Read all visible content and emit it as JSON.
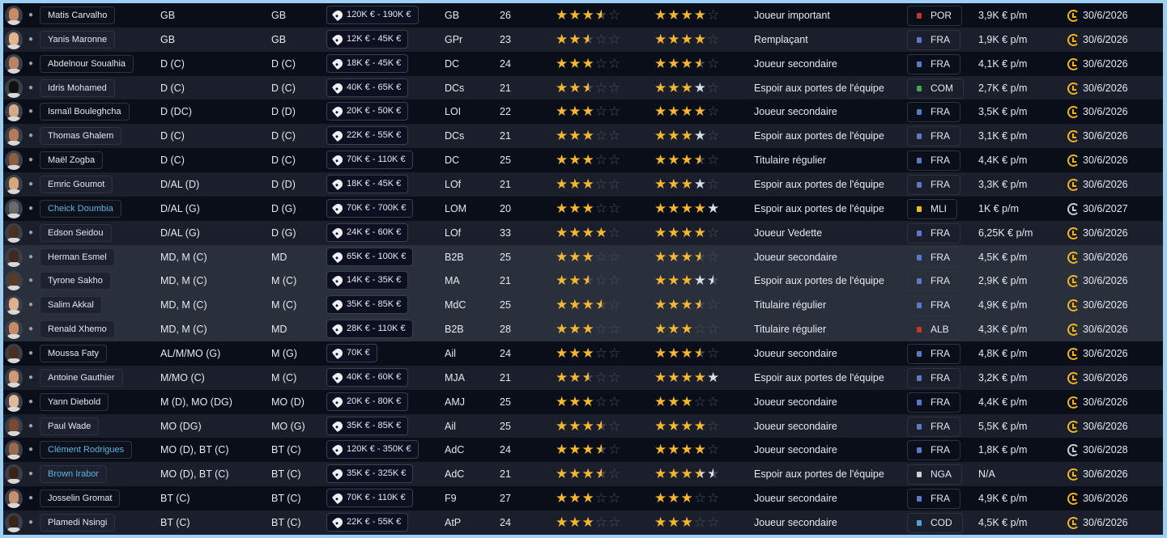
{
  "colors": {
    "star_gold": "#f7b731",
    "star_potential": "#d9dbe6",
    "star_empty": "#4a4f5e",
    "link_name": "#5fb4de",
    "clock_gold": "#f2b41c",
    "clock_grey": "#c8ccd4"
  },
  "players": [
    {
      "name": "Matis Carvalho",
      "link": false,
      "positions": "GB",
      "best_pos": "GB",
      "value": "120K € - 190K €",
      "role": "GB",
      "age": "26",
      "ability": 3.5,
      "potential_min": 4,
      "potential_max": 4,
      "status": "Joueur important",
      "nation": "POR",
      "flag": "#c0392b",
      "wage": "3,9K € p/m",
      "expires": "30/6/2026",
      "clock": "gold",
      "skin": "#c98b62"
    },
    {
      "name": "Yanis Maronne",
      "link": false,
      "positions": "GB",
      "best_pos": "GB",
      "value": "12K € - 45K €",
      "role": "GPr",
      "age": "23",
      "ability": 2.5,
      "potential_min": 4,
      "potential_max": 4,
      "status": "Remplaçant",
      "nation": "FRA",
      "flag": "#5b79c9",
      "wage": "1,9K € p/m",
      "expires": "30/6/2026",
      "clock": "gold",
      "skin": "#e2b48c"
    },
    {
      "name": "Abdelnour Soualhia",
      "link": false,
      "positions": "D (C)",
      "best_pos": "D (C)",
      "value": "18K € - 45K €",
      "role": "DC",
      "age": "24",
      "ability": 3,
      "potential_min": 3.5,
      "potential_max": 3.5,
      "status": "Joueur secondaire",
      "nation": "FRA",
      "flag": "#5b79c9",
      "wage": "4,1K € p/m",
      "expires": "30/6/2026",
      "clock": "gold",
      "skin": "#b98462"
    },
    {
      "name": "Idris Mohamed",
      "link": false,
      "positions": "D (C)",
      "best_pos": "D (C)",
      "value": "40K € - 65K €",
      "role": "DCs",
      "age": "21",
      "ability": 2.5,
      "potential_min": 3,
      "potential_max": 4,
      "status": "Espoir aux portes de l'équipe",
      "nation": "COM",
      "flag": "#3fa65a",
      "wage": "2,7K € p/m",
      "expires": "30/6/2026",
      "clock": "gold",
      "skin": "#111111"
    },
    {
      "name": "Ismaïl Bouleghcha",
      "link": false,
      "positions": "D (DC)",
      "best_pos": "D (D)",
      "value": "20K € - 50K €",
      "role": "LOI",
      "age": "22",
      "ability": 3,
      "potential_min": 4,
      "potential_max": 4,
      "status": "Joueur secondaire",
      "nation": "FRA",
      "flag": "#5b79c9",
      "wage": "3,5K € p/m",
      "expires": "30/6/2026",
      "clock": "gold",
      "skin": "#d6a98a"
    },
    {
      "name": "Thomas Ghalem",
      "link": false,
      "positions": "D (C)",
      "best_pos": "D (C)",
      "value": "22K € - 55K €",
      "role": "DCs",
      "age": "21",
      "ability": 3,
      "potential_min": 3,
      "potential_max": 4,
      "status": "Espoir aux portes de l'équipe",
      "nation": "FRA",
      "flag": "#5b79c9",
      "wage": "3,1K € p/m",
      "expires": "30/6/2026",
      "clock": "gold",
      "skin": "#b57a5a"
    },
    {
      "name": "Maël Zogba",
      "link": false,
      "positions": "D (C)",
      "best_pos": "D (C)",
      "value": "70K € - 110K €",
      "role": "DC",
      "age": "25",
      "ability": 3,
      "potential_min": 3.5,
      "potential_max": 3.5,
      "status": "Titulaire régulier",
      "nation": "FRA",
      "flag": "#5b79c9",
      "wage": "4,4K € p/m",
      "expires": "30/6/2026",
      "clock": "gold",
      "skin": "#8d5e40"
    },
    {
      "name": "Emric Goumot",
      "link": false,
      "positions": "D/AL (D)",
      "best_pos": "D (D)",
      "value": "18K € - 45K €",
      "role": "LOf",
      "age": "21",
      "ability": 3,
      "potential_min": 3,
      "potential_max": 4,
      "status": "Espoir aux portes de l'équipe",
      "nation": "FRA",
      "flag": "#5b79c9",
      "wage": "3,3K € p/m",
      "expires": "30/6/2026",
      "clock": "gold",
      "skin": "#d9a77c"
    },
    {
      "name": "Cheick Doumbia",
      "link": true,
      "positions": "D/AL (G)",
      "best_pos": "D (G)",
      "value": "70K € - 700K €",
      "role": "LOM",
      "age": "20",
      "ability": 3,
      "potential_min": 4,
      "potential_max": 5,
      "status": "Espoir aux portes de l'équipe",
      "nation": "MLI",
      "flag": "#e8c021",
      "wage": "1K € p/m",
      "expires": "30/6/2027",
      "clock": "grey",
      "skin": "#6a6a6a"
    },
    {
      "name": "Edson Seidou",
      "link": false,
      "positions": "D/AL (G)",
      "best_pos": "D (G)",
      "value": "24K € - 60K €",
      "role": "LOf",
      "age": "33",
      "ability": 4,
      "potential_min": 4,
      "potential_max": 4,
      "status": "Joueur Vedette",
      "nation": "FRA",
      "flag": "#5b79c9",
      "wage": "6,25K € p/m",
      "expires": "30/6/2026",
      "clock": "gold",
      "skin": "#4a3022"
    },
    {
      "name": "Herman Esmel",
      "link": false,
      "positions": "MD, M (C)",
      "best_pos": "MD",
      "value": "65K € - 100K €",
      "role": "B2B",
      "age": "25",
      "ability": 3,
      "potential_min": 3.5,
      "potential_max": 3.5,
      "status": "Joueur secondaire",
      "nation": "FRA",
      "flag": "#5b79c9",
      "wage": "4,5K € p/m",
      "expires": "30/6/2026",
      "clock": "gold",
      "skin": "#3e2a1e"
    },
    {
      "name": "Tyrone Sakho",
      "link": false,
      "positions": "MD, M (C)",
      "best_pos": "M (C)",
      "value": "14K € - 35K €",
      "role": "MA",
      "age": "21",
      "ability": 2.5,
      "potential_min": 3,
      "potential_max": 4.5,
      "status": "Espoir aux portes de l'équipe",
      "nation": "FRA",
      "flag": "#5b79c9",
      "wage": "2,9K € p/m",
      "expires": "30/6/2026",
      "clock": "gold",
      "skin": "#5a3a26"
    },
    {
      "name": "Salim Akkal",
      "link": false,
      "positions": "MD, M (C)",
      "best_pos": "M (C)",
      "value": "35K € - 85K €",
      "role": "MdC",
      "age": "25",
      "ability": 3.5,
      "potential_min": 3.5,
      "potential_max": 3.5,
      "status": "Titulaire régulier",
      "nation": "FRA",
      "flag": "#5b79c9",
      "wage": "4,9K € p/m",
      "expires": "30/6/2026",
      "clock": "gold",
      "skin": "#e0b090"
    },
    {
      "name": "Renald Xhemo",
      "link": false,
      "positions": "MD, M (C)",
      "best_pos": "MD",
      "value": "28K € - 110K €",
      "role": "B2B",
      "age": "28",
      "ability": 3,
      "potential_min": 3,
      "potential_max": 3,
      "status": "Titulaire régulier",
      "nation": "ALB",
      "flag": "#c0392b",
      "wage": "4,3K € p/m",
      "expires": "30/6/2026",
      "clock": "gold",
      "skin": "#c88a64"
    },
    {
      "name": "Moussa Faty",
      "link": false,
      "positions": "AL/M/MO (G)",
      "best_pos": "M (G)",
      "value": "70K €",
      "role": "Ail",
      "age": "24",
      "ability": 3,
      "potential_min": 3.5,
      "potential_max": 3.5,
      "status": "Joueur secondaire",
      "nation": "FRA",
      "flag": "#5b79c9",
      "wage": "4,8K € p/m",
      "expires": "30/6/2026",
      "clock": "gold",
      "skin": "#4a3022"
    },
    {
      "name": "Antoine Gauthier",
      "link": false,
      "positions": "M/MO (C)",
      "best_pos": "M (C)",
      "value": "40K € - 60K €",
      "role": "MJA",
      "age": "21",
      "ability": 2.5,
      "potential_min": 4,
      "potential_max": 5,
      "status": "Espoir aux portes de l'équipe",
      "nation": "FRA",
      "flag": "#5b79c9",
      "wage": "3,2K € p/m",
      "expires": "30/6/2026",
      "clock": "gold",
      "skin": "#d09a74"
    },
    {
      "name": "Yann Diebold",
      "link": false,
      "positions": "M (D), MO (DG)",
      "best_pos": "MO (D)",
      "value": "20K € - 80K €",
      "role": "AMJ",
      "age": "25",
      "ability": 3,
      "potential_min": 3,
      "potential_max": 3,
      "status": "Joueur secondaire",
      "nation": "FRA",
      "flag": "#5b79c9",
      "wage": "4,4K € p/m",
      "expires": "30/6/2026",
      "clock": "gold",
      "skin": "#e2b896"
    },
    {
      "name": "Paul Wade",
      "link": false,
      "positions": "MO (DG)",
      "best_pos": "MO (G)",
      "value": "35K € - 85K €",
      "role": "Ail",
      "age": "25",
      "ability": 3.5,
      "potential_min": 4,
      "potential_max": 4,
      "status": "Joueur secondaire",
      "nation": "FRA",
      "flag": "#5b79c9",
      "wage": "5,5K € p/m",
      "expires": "30/6/2026",
      "clock": "gold",
      "skin": "#7a4a30"
    },
    {
      "name": "Clément Rodrigues",
      "link": true,
      "positions": "MO (D), BT (C)",
      "best_pos": "BT (C)",
      "value": "120K € - 350K €",
      "role": "AdC",
      "age": "24",
      "ability": 3.5,
      "potential_min": 4,
      "potential_max": 4,
      "status": "Joueur secondaire",
      "nation": "FRA",
      "flag": "#5b79c9",
      "wage": "1,8K € p/m",
      "expires": "30/6/2028",
      "clock": "grey",
      "skin": "#9a6a4a"
    },
    {
      "name": "Brown Irabor",
      "link": true,
      "positions": "MO (D), BT (C)",
      "best_pos": "BT (C)",
      "value": "35K € - 325K €",
      "role": "AdC",
      "age": "21",
      "ability": 3.5,
      "potential_min": 3.5,
      "potential_max": 4.5,
      "status": "Espoir aux portes de l'équipe",
      "nation": "NGA",
      "flag": "#d0d0d0",
      "wage": "N/A",
      "expires": "30/6/2026",
      "clock": "gold",
      "skin": "#3a2418"
    },
    {
      "name": "Josselin Gromat",
      "link": false,
      "positions": "BT (C)",
      "best_pos": "BT (C)",
      "value": "70K € - 110K €",
      "role": "F9",
      "age": "27",
      "ability": 3,
      "potential_min": 3,
      "potential_max": 3,
      "status": "Joueur secondaire",
      "nation": "FRA",
      "flag": "#5b79c9",
      "wage": "4,9K € p/m",
      "expires": "30/6/2026",
      "clock": "gold",
      "skin": "#c89070"
    },
    {
      "name": "Plamedi Nsingi",
      "link": false,
      "positions": "BT (C)",
      "best_pos": "BT (C)",
      "value": "22K € - 55K €",
      "role": "AtP",
      "age": "24",
      "ability": 3,
      "potential_min": 3,
      "potential_max": 3,
      "status": "Joueur secondaire",
      "nation": "COD",
      "flag": "#4fa3d9",
      "wage": "4,5K € p/m",
      "expires": "30/6/2026",
      "clock": "gold",
      "skin": "#3a2418"
    }
  ]
}
